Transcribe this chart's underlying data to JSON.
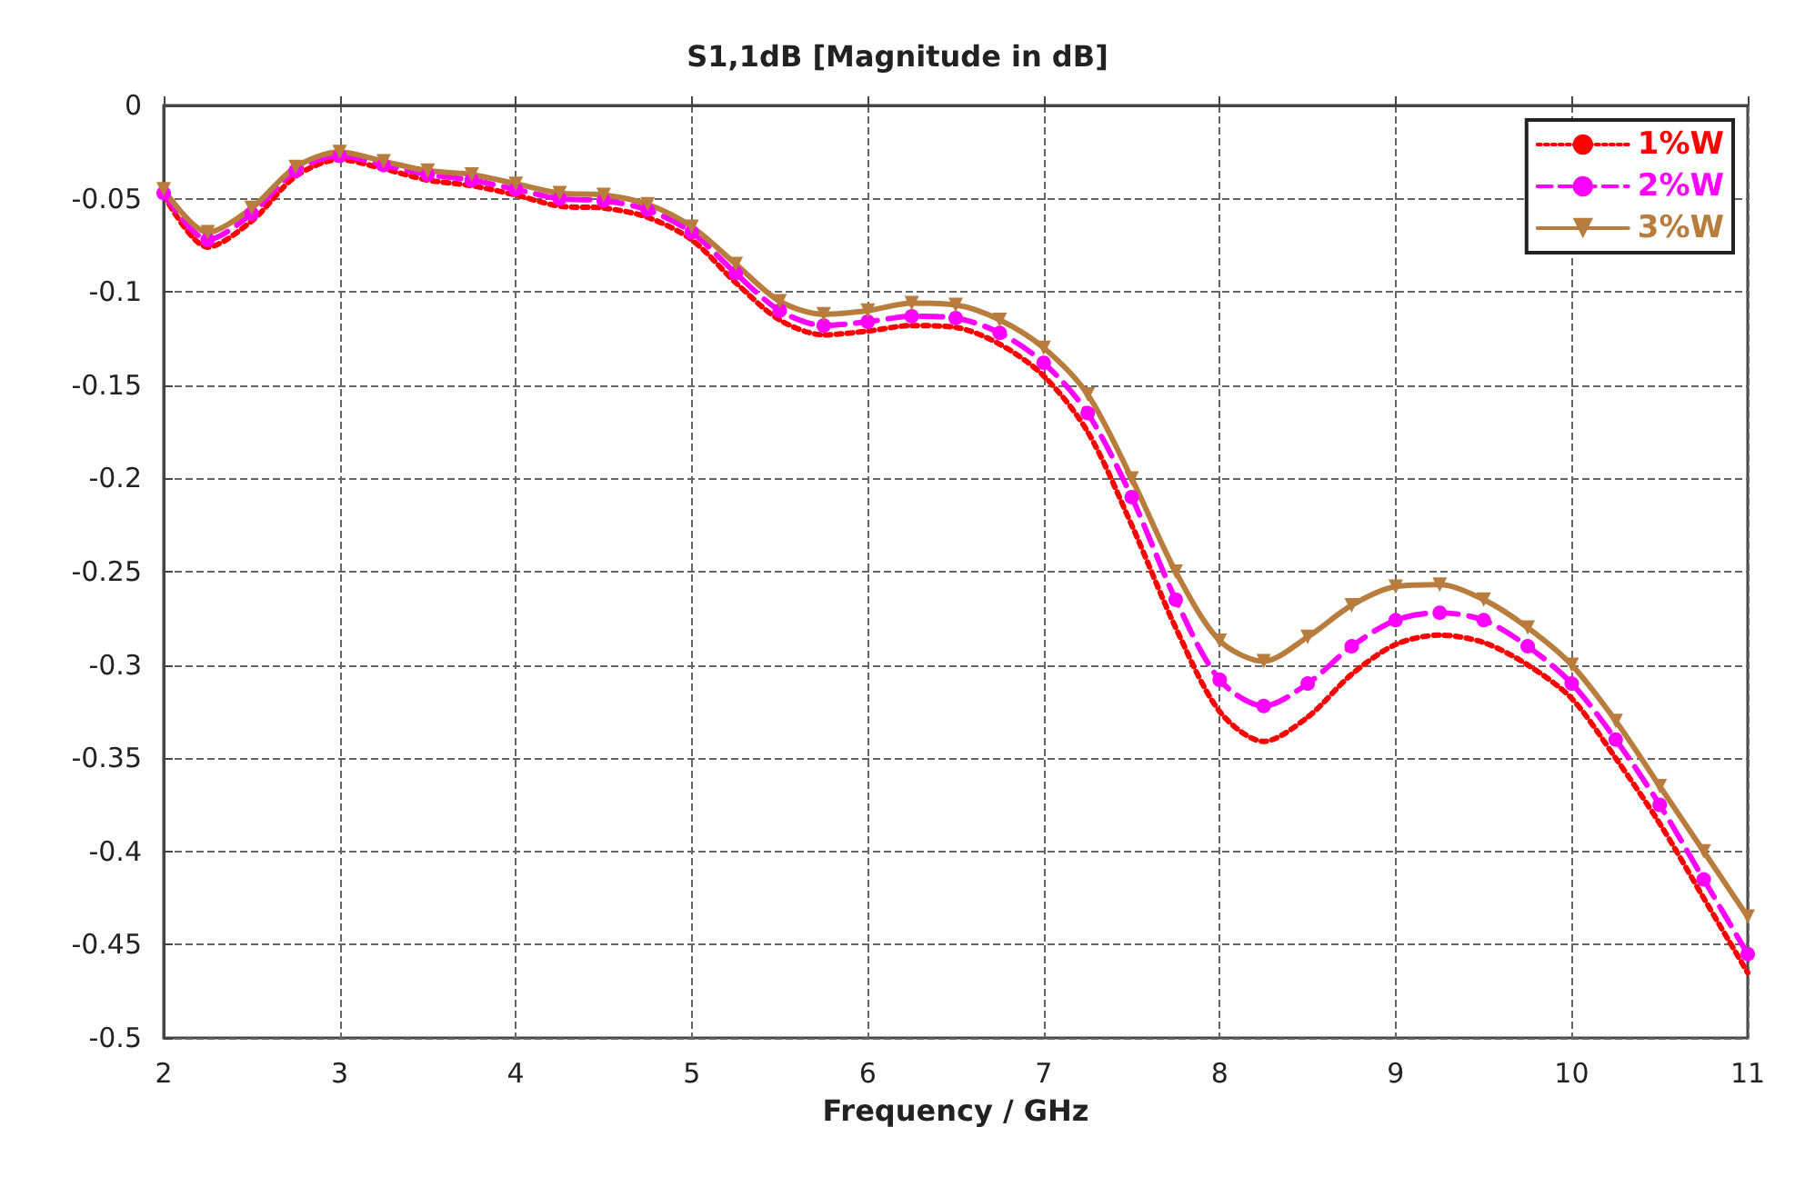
{
  "chart_data": {
    "type": "line",
    "title": "S1,1dB [Magnitude in dB]",
    "xlabel": "Frequency / GHz",
    "x": [
      2,
      2.25,
      2.5,
      2.75,
      3,
      3.25,
      3.5,
      3.75,
      4,
      4.25,
      4.5,
      4.75,
      5,
      5.25,
      5.5,
      5.75,
      6,
      6.25,
      6.5,
      6.75,
      7,
      7.25,
      7.5,
      7.75,
      8,
      8.25,
      8.5,
      8.75,
      9,
      9.25,
      9.5,
      9.75,
      10,
      10.25,
      10.5,
      10.75,
      11
    ],
    "series": [
      {
        "name": "1%W",
        "color": "#ff0000",
        "line_style": "dotted",
        "marker": "none",
        "values": [
          -0.048,
          -0.076,
          -0.062,
          -0.038,
          -0.029,
          -0.034,
          -0.04,
          -0.043,
          -0.048,
          -0.054,
          -0.055,
          -0.06,
          -0.072,
          -0.095,
          -0.115,
          -0.123,
          -0.121,
          -0.118,
          -0.119,
          -0.128,
          -0.145,
          -0.175,
          -0.225,
          -0.28,
          -0.325,
          -0.341,
          -0.328,
          -0.305,
          -0.289,
          -0.284,
          -0.288,
          -0.3,
          -0.318,
          -0.35,
          -0.385,
          -0.425,
          -0.465
        ]
      },
      {
        "name": "2%W",
        "color": "#ff00ff",
        "line_style": "dashed",
        "marker": "circle",
        "values": [
          -0.047,
          -0.072,
          -0.058,
          -0.035,
          -0.027,
          -0.032,
          -0.037,
          -0.04,
          -0.045,
          -0.05,
          -0.051,
          -0.056,
          -0.068,
          -0.09,
          -0.11,
          -0.118,
          -0.116,
          -0.113,
          -0.114,
          -0.122,
          -0.138,
          -0.165,
          -0.21,
          -0.265,
          -0.308,
          -0.322,
          -0.31,
          -0.29,
          -0.276,
          -0.272,
          -0.276,
          -0.29,
          -0.31,
          -0.34,
          -0.375,
          -0.415,
          -0.455
        ]
      },
      {
        "name": "3%W",
        "color": "#b87c3c",
        "line_style": "solid",
        "marker": "triangle",
        "values": [
          -0.045,
          -0.068,
          -0.055,
          -0.033,
          -0.025,
          -0.03,
          -0.035,
          -0.037,
          -0.042,
          -0.047,
          -0.048,
          -0.053,
          -0.065,
          -0.085,
          -0.105,
          -0.112,
          -0.11,
          -0.106,
          -0.107,
          -0.115,
          -0.13,
          -0.155,
          -0.2,
          -0.25,
          -0.287,
          -0.298,
          -0.285,
          -0.268,
          -0.258,
          -0.257,
          -0.265,
          -0.28,
          -0.3,
          -0.33,
          -0.365,
          -0.4,
          -0.435
        ]
      }
    ],
    "xlim": [
      2,
      11
    ],
    "xticks": [
      2,
      3,
      4,
      5,
      6,
      7,
      8,
      9,
      10,
      11
    ],
    "ylim": [
      -0.5,
      0
    ],
    "yticks": [
      0,
      -0.05,
      -0.1,
      -0.15,
      -0.2,
      -0.25,
      -0.3,
      -0.35,
      -0.4,
      -0.45,
      -0.5
    ],
    "grid": true,
    "legend": "top right"
  }
}
